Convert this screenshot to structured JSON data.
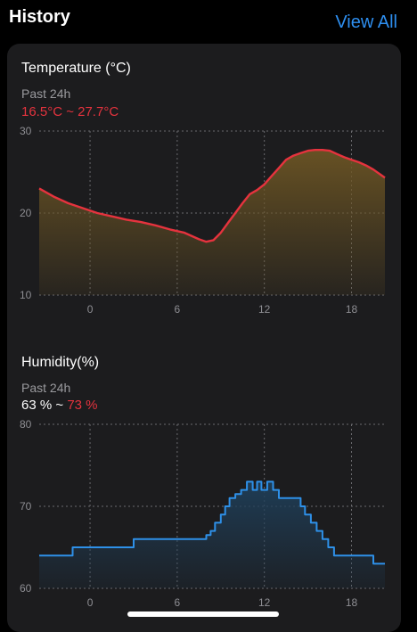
{
  "header": {
    "title": "History",
    "view_all": "View All"
  },
  "temperature": {
    "title": "Temperature (°C)",
    "period": "Past 24h",
    "range": "16.5°C ~ 27.7°C",
    "color": "#e5333e",
    "fill_color": "#6b5424"
  },
  "humidity": {
    "title": "Humidity(%)",
    "period": "Past 24h",
    "range_min": "63 %",
    "range_sep": " ~ ",
    "range_max": "73 %",
    "color": "#2e90e8",
    "fill_color": "#1f3e58"
  },
  "chart_data": [
    {
      "type": "area",
      "title": "Temperature (°C)",
      "x_ticks": [
        "0",
        "6",
        "12",
        "18"
      ],
      "y_ticks": [
        "10",
        "20",
        "30"
      ],
      "xlim": [
        -3.5,
        20.3
      ],
      "ylim": [
        10,
        30
      ],
      "grid": true,
      "x": [
        -3.5,
        -2.5,
        -1.5,
        -0.5,
        0.5,
        1.5,
        2.5,
        3.5,
        4.5,
        5.5,
        6.5,
        7.5,
        8,
        8.5,
        9,
        9.5,
        10,
        10.5,
        11,
        11.5,
        12,
        12.5,
        13,
        13.5,
        14,
        14.5,
        15,
        15.5,
        16,
        16.5,
        17,
        17.5,
        18,
        18.5,
        19,
        19.5,
        20.3
      ],
      "values": [
        23.0,
        22.0,
        21.2,
        20.6,
        20.0,
        19.6,
        19.2,
        18.9,
        18.5,
        18.0,
        17.6,
        16.8,
        16.5,
        16.7,
        17.6,
        18.8,
        20.0,
        21.2,
        22.3,
        22.8,
        23.5,
        24.5,
        25.5,
        26.5,
        27.0,
        27.3,
        27.6,
        27.7,
        27.7,
        27.6,
        27.2,
        26.8,
        26.5,
        26.2,
        25.8,
        25.3,
        24.3
      ]
    },
    {
      "type": "area",
      "title": "Humidity(%)",
      "x_ticks": [
        "0",
        "6",
        "12",
        "18"
      ],
      "y_ticks": [
        "60",
        "70",
        "80"
      ],
      "xlim": [
        -3.5,
        20.3
      ],
      "ylim": [
        60,
        80
      ],
      "grid": true,
      "step": true,
      "x": [
        -3.5,
        -1.2,
        3,
        8,
        8.3,
        8.6,
        9,
        9.3,
        9.6,
        10,
        10.4,
        10.8,
        11.2,
        11.5,
        11.8,
        12.2,
        12.6,
        13,
        14,
        14.5,
        14.8,
        15.2,
        15.6,
        16,
        16.4,
        16.8,
        17.3,
        19.5,
        20.3
      ],
      "values": [
        64,
        65,
        66,
        66.5,
        67,
        68,
        69,
        70,
        71,
        71.5,
        72,
        73,
        72,
        73,
        72,
        73,
        72,
        71,
        71,
        70,
        69,
        68,
        67,
        66,
        65,
        64,
        64,
        63,
        63
      ]
    }
  ]
}
